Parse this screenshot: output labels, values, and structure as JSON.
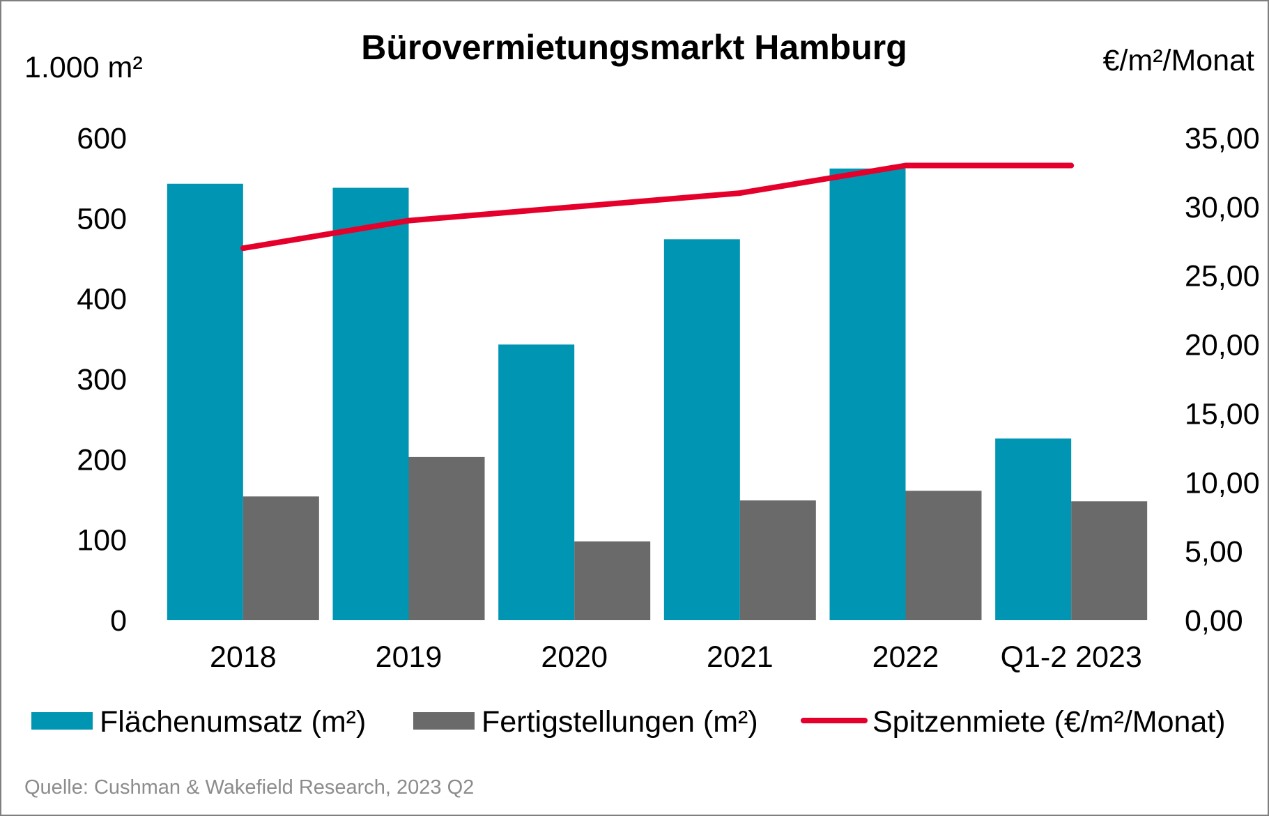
{
  "chart_data": {
    "type": "bar",
    "title": "Bürovermietungsmarkt Hamburg",
    "y_left_unit": "1.000 m²",
    "y_right_unit": "€/m²/Monat",
    "categories": [
      "2018",
      "2019",
      "2020",
      "2021",
      "2022",
      "Q1-2 2023"
    ],
    "series": [
      {
        "name": "Flächenumsatz (m²)",
        "type": "bar",
        "axis": "left",
        "color": "#0095b3",
        "values": [
          543,
          538,
          343,
          474,
          562,
          226
        ]
      },
      {
        "name": "Fertigstellungen (m²)",
        "type": "bar",
        "axis": "left",
        "color": "#6a6a6a",
        "values": [
          154,
          203,
          98,
          149,
          161,
          148
        ]
      },
      {
        "name": "Spitzenmiete (€/m²/Monat)",
        "type": "line",
        "axis": "right",
        "color": "#e4002b",
        "values": [
          27.0,
          29.0,
          30.0,
          31.0,
          33.0,
          33.0
        ]
      }
    ],
    "y_left": {
      "min": 0,
      "max": 600,
      "ticks": [
        "0",
        "100",
        "200",
        "300",
        "400",
        "500",
        "600"
      ]
    },
    "y_right": {
      "min": 0,
      "max": 35,
      "ticks": [
        "0,00",
        "5,00",
        "10,00",
        "15,00",
        "20,00",
        "25,00",
        "30,00",
        "35,00"
      ]
    },
    "grid": false,
    "legend_position": "bottom"
  },
  "source": "Quelle: Cushman & Wakefield Research, 2023 Q2"
}
